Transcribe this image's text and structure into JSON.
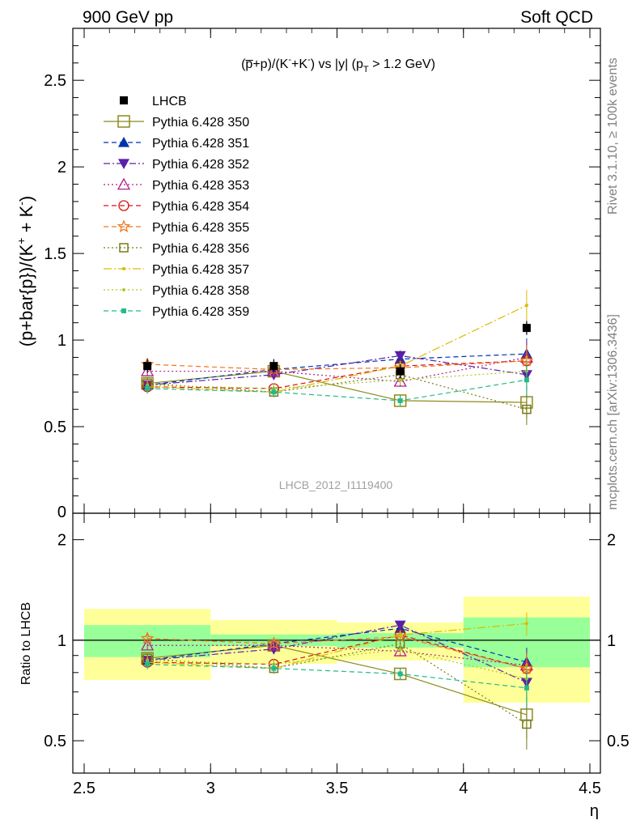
{
  "header": {
    "left": "900 GeV pp",
    "right": "Soft QCD"
  },
  "side": {
    "rivet": "Rivet 3.1.10, ≥ 100k events",
    "mcplots": "mcplots.cern.ch [arXiv:1306.3436]"
  },
  "chart_data": {
    "type": "scatter",
    "title": "(p̅+p)/(K⁻+K⁻) vs |y| (p_T > 1.2 GeV)",
    "title_parts": {
      "main": "(p̅+p)/(K",
      "s1": "-",
      "mid": "+K",
      "s2": "-",
      "tail": ") vs |y| (p",
      "sub": "T",
      "end": " > 1.2 GeV)"
    },
    "analysis_id": "LHCB_2012_I1119400",
    "ylabel": "(p+bar{p})/(K⁺ + K⁻)",
    "ylabel_parts": {
      "main": "(p+bar{p})/(K",
      "s1": "+",
      "mid": " + K",
      "s2": "-",
      "end": ")"
    },
    "ratio_ylabel": "Ratio to LHCB",
    "xlabel": "η",
    "xlim": [
      2.5,
      4.5
    ],
    "ylim": [
      0,
      2.8
    ],
    "ratio_ylim": [
      0.4,
      2.4
    ],
    "x_ticks": [
      "2.5",
      "3",
      "3.5",
      "4",
      "4.5"
    ],
    "y_ticks": [
      "0.5",
      "1",
      "1.5",
      "2",
      "2.5"
    ],
    "y_tick_zero": "0",
    "ratio_y_ticks": [
      "0.5",
      "1",
      "2"
    ],
    "x": [
      2.75,
      3.25,
      3.75,
      4.25
    ],
    "x_err": 0.25,
    "data": {
      "name": "LHCB",
      "values": [
        0.85,
        0.85,
        0.82,
        1.07
      ],
      "errors": [
        0.04,
        0.04,
        0.04,
        0.04
      ]
    },
    "bands": {
      "inner": [
        0.11,
        0.04,
        0.05,
        0.17
      ],
      "outer": [
        0.24,
        0.15,
        0.13,
        0.35
      ]
    },
    "series": [
      {
        "name": "Pythia 6.428 350",
        "color": "#8b8b1a",
        "dash": "",
        "marker": "square-open",
        "values": [
          0.75,
          0.82,
          0.65,
          0.64
        ]
      },
      {
        "name": "Pythia 6.428 351",
        "color": "#0033aa",
        "dash": "6,4",
        "marker": "triangle-up",
        "values": [
          0.74,
          0.83,
          0.89,
          0.92
        ]
      },
      {
        "name": "Pythia 6.428 352",
        "color": "#5a1fa8",
        "dash": "8,3,2,3",
        "marker": "triangle-down",
        "values": [
          0.74,
          0.8,
          0.91,
          0.8
        ]
      },
      {
        "name": "Pythia 6.428 353",
        "color": "#b0208c",
        "dash": "2,3",
        "marker": "triangle-open",
        "values": [
          0.82,
          0.82,
          0.76,
          0.9
        ]
      },
      {
        "name": "Pythia 6.428 354",
        "color": "#dd1111",
        "dash": "6,4",
        "marker": "circle-open",
        "values": [
          0.73,
          0.72,
          0.85,
          0.88
        ]
      },
      {
        "name": "Pythia 6.428 355",
        "color": "#ee7722",
        "dash": "6,4",
        "marker": "star-open",
        "values": [
          0.86,
          0.83,
          0.84,
          0.88
        ]
      },
      {
        "name": "Pythia 6.428 356",
        "color": "#7a7a1a",
        "dash": "2,3",
        "marker": "square-open-small",
        "values": [
          0.75,
          0.7,
          0.8,
          0.6
        ]
      },
      {
        "name": "Pythia 6.428 357",
        "color": "#ddbb00",
        "dash": "10,3,2,3",
        "marker": "dot",
        "values": [
          0.73,
          0.7,
          0.85,
          1.2
        ]
      },
      {
        "name": "Pythia 6.428 358",
        "color": "#aacc22",
        "dash": "2,3",
        "marker": "dot",
        "values": [
          0.74,
          0.72,
          0.77,
          0.82
        ]
      },
      {
        "name": "Pythia 6.428 359",
        "color": "#22bb88",
        "dash": "6,4",
        "marker": "square-small",
        "values": [
          0.72,
          0.7,
          0.65,
          0.77
        ]
      }
    ]
  }
}
